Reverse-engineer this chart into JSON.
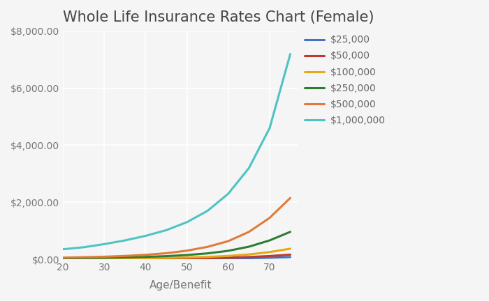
{
  "title": "Whole Life Insurance Rates Chart (Female)",
  "xlabel": "Age/Benefit",
  "ages": [
    20,
    25,
    30,
    35,
    40,
    45,
    50,
    55,
    60,
    65,
    70,
    75
  ],
  "series": [
    {
      "label": "$25,000",
      "color": "#4472C4",
      "values": [
        5,
        6,
        7,
        8,
        10,
        12,
        15,
        19,
        26,
        36,
        52,
        75
      ]
    },
    {
      "label": "$50,000",
      "color": "#C0392B",
      "values": [
        9,
        11,
        13,
        16,
        19,
        24,
        30,
        40,
        55,
        78,
        112,
        160
      ]
    },
    {
      "label": "$100,000",
      "color": "#E6A817",
      "values": [
        17,
        20,
        24,
        29,
        36,
        46,
        60,
        82,
        115,
        168,
        250,
        370
      ]
    },
    {
      "label": "$250,000",
      "color": "#2E7D32",
      "values": [
        35,
        42,
        52,
        65,
        83,
        108,
        148,
        205,
        295,
        440,
        660,
        960
      ]
    },
    {
      "label": "$500,000",
      "color": "#E07B39",
      "values": [
        55,
        70,
        88,
        115,
        155,
        210,
        300,
        435,
        635,
        960,
        1450,
        2150
      ]
    },
    {
      "label": "$1,000,000",
      "color": "#4FC3C3",
      "values": [
        350,
        420,
        530,
        660,
        820,
        1020,
        1300,
        1700,
        2300,
        3200,
        4600,
        7200
      ]
    }
  ],
  "ylim": [
    0,
    8000
  ],
  "yticks": [
    0,
    2000,
    4000,
    6000,
    8000
  ],
  "xticks": [
    20,
    30,
    40,
    50,
    60,
    70
  ],
  "background_color": "#f5f5f5",
  "plot_bg_color": "#f5f5f5",
  "grid_color": "#ffffff",
  "title_fontsize": 15,
  "label_fontsize": 11,
  "tick_fontsize": 10,
  "legend_fontsize": 10
}
